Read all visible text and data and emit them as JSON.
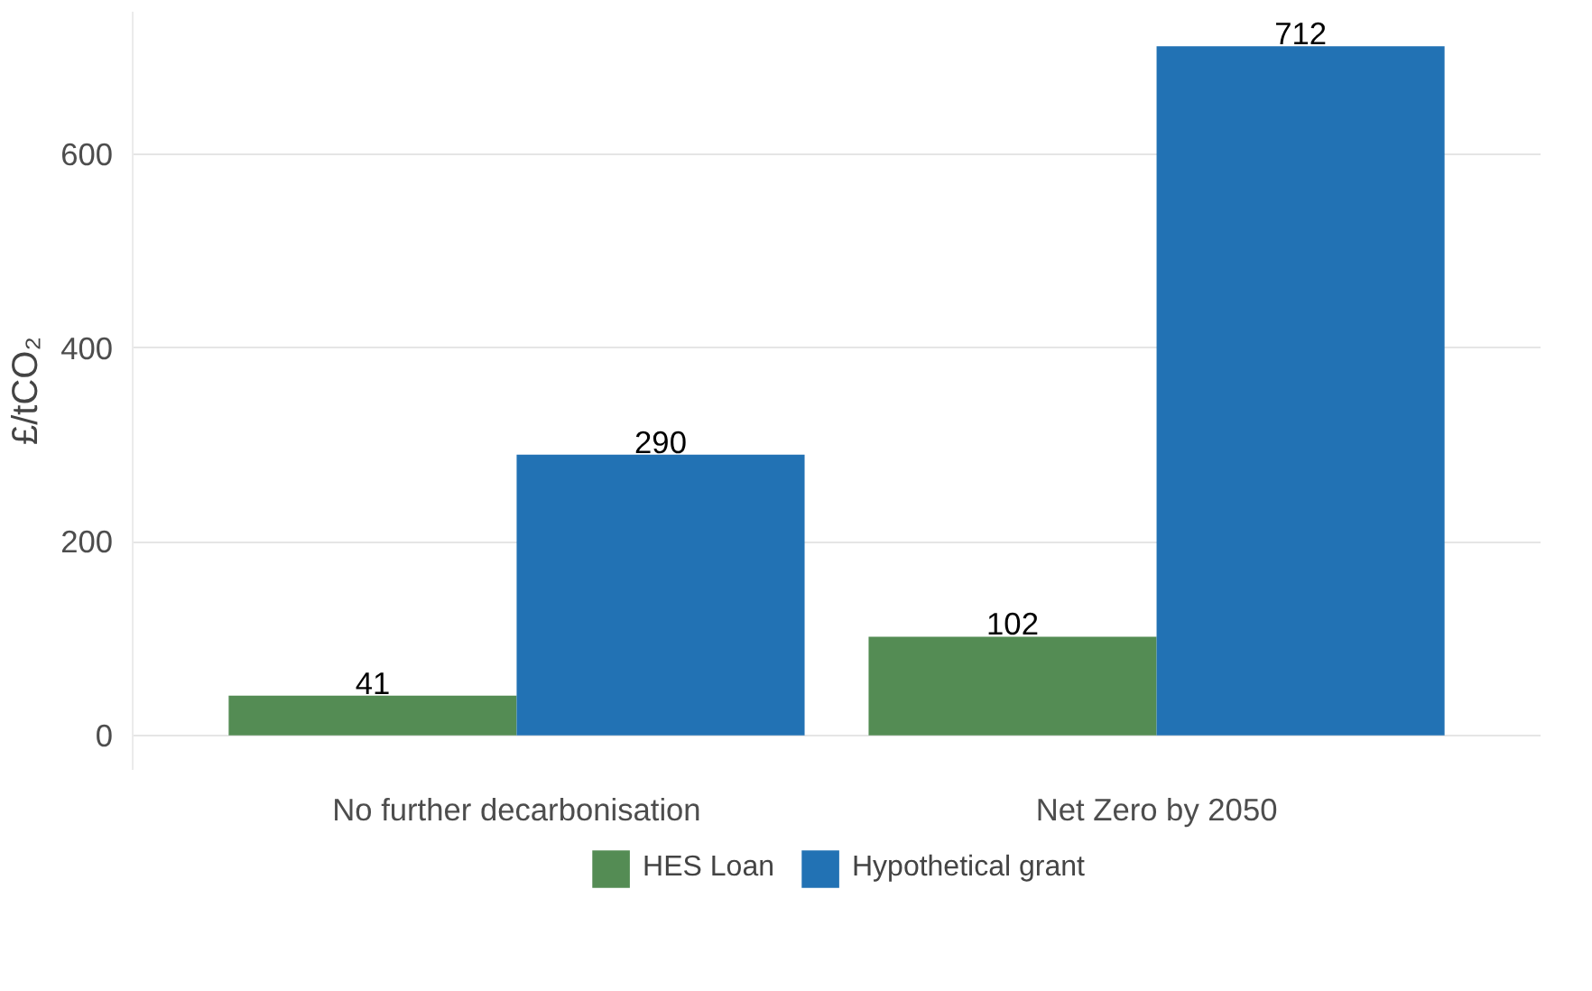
{
  "chart_data": {
    "type": "bar",
    "ylabel": "£/tCO₂",
    "categories": [
      "No further decarbonisation",
      "Net Zero by 2050"
    ],
    "series": [
      {
        "name": "HES Loan",
        "color": "#548c54",
        "values": [
          41,
          102
        ]
      },
      {
        "name": "Hypothetical grant",
        "color": "#2272b4",
        "values": [
          290,
          712
        ]
      }
    ],
    "ylim": [
      -35.6,
      747.6
    ],
    "yticks": [
      0,
      200,
      400,
      600
    ],
    "grid": "y",
    "legend": "bottom",
    "data_labels": true
  }
}
